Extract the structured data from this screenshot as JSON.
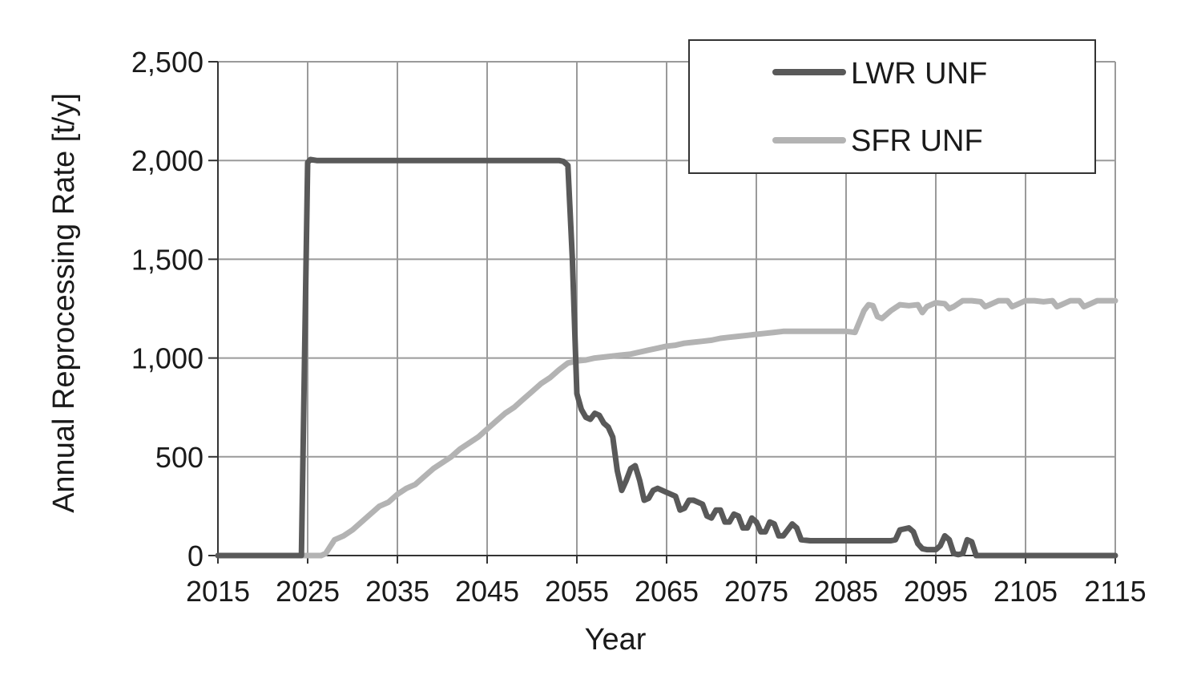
{
  "chart_data": {
    "type": "line",
    "title": "",
    "xlabel": "Year",
    "ylabel": "Annual Reprocessing Rate [t/y]",
    "xlim": [
      2015,
      2115
    ],
    "ylim": [
      0,
      2500
    ],
    "x_ticks": [
      "2015",
      "2025",
      "2035",
      "2045",
      "2055",
      "2065",
      "2075",
      "2085",
      "2095",
      "2105",
      "2115"
    ],
    "y_ticks": [
      "0",
      "500",
      "1,000",
      "1,500",
      "2,000",
      "2,500"
    ],
    "grid": true,
    "legend_position": "top-right",
    "series": [
      {
        "name": "LWR UNF",
        "color": "#595959",
        "points": [
          [
            2015,
            0
          ],
          [
            2024,
            0
          ],
          [
            2024.3,
            0
          ],
          [
            2025,
            1990
          ],
          [
            2025.3,
            2005
          ],
          [
            2026,
            2000
          ],
          [
            2030,
            2000
          ],
          [
            2040,
            2000
          ],
          [
            2050,
            2000
          ],
          [
            2053,
            2000
          ],
          [
            2053.5,
            1995
          ],
          [
            2054,
            1975
          ],
          [
            2054.5,
            1500
          ],
          [
            2055,
            820
          ],
          [
            2055.5,
            740
          ],
          [
            2056,
            700
          ],
          [
            2056.5,
            690
          ],
          [
            2057,
            720
          ],
          [
            2057.5,
            710
          ],
          [
            2058,
            670
          ],
          [
            2058.5,
            650
          ],
          [
            2059,
            600
          ],
          [
            2059.5,
            430
          ],
          [
            2060,
            330
          ],
          [
            2060.5,
            380
          ],
          [
            2061,
            440
          ],
          [
            2061.5,
            455
          ],
          [
            2062,
            380
          ],
          [
            2062.5,
            280
          ],
          [
            2063,
            290
          ],
          [
            2063.5,
            330
          ],
          [
            2064,
            340
          ],
          [
            2065,
            320
          ],
          [
            2066,
            300
          ],
          [
            2066.5,
            230
          ],
          [
            2067,
            240
          ],
          [
            2067.5,
            280
          ],
          [
            2068,
            280
          ],
          [
            2069,
            260
          ],
          [
            2069.5,
            200
          ],
          [
            2070,
            190
          ],
          [
            2070.5,
            230
          ],
          [
            2071,
            230
          ],
          [
            2071.5,
            170
          ],
          [
            2072,
            170
          ],
          [
            2072.5,
            210
          ],
          [
            2073,
            200
          ],
          [
            2073.5,
            140
          ],
          [
            2074,
            140
          ],
          [
            2074.5,
            190
          ],
          [
            2075,
            170
          ],
          [
            2075.5,
            120
          ],
          [
            2076,
            120
          ],
          [
            2076.5,
            170
          ],
          [
            2077,
            160
          ],
          [
            2077.5,
            100
          ],
          [
            2078,
            100
          ],
          [
            2078.5,
            130
          ],
          [
            2079,
            160
          ],
          [
            2079.5,
            140
          ],
          [
            2080,
            80
          ],
          [
            2081,
            75
          ],
          [
            2082,
            75
          ],
          [
            2085,
            75
          ],
          [
            2088,
            75
          ],
          [
            2090,
            75
          ],
          [
            2090.5,
            80
          ],
          [
            2091,
            130
          ],
          [
            2092,
            140
          ],
          [
            2092.5,
            120
          ],
          [
            2093,
            60
          ],
          [
            2093.5,
            35
          ],
          [
            2094,
            30
          ],
          [
            2095,
            30
          ],
          [
            2095.5,
            50
          ],
          [
            2096,
            100
          ],
          [
            2096.5,
            80
          ],
          [
            2097,
            10
          ],
          [
            2097.5,
            5
          ],
          [
            2098,
            10
          ],
          [
            2098.5,
            80
          ],
          [
            2099,
            70
          ],
          [
            2099.5,
            0
          ],
          [
            2100,
            0
          ],
          [
            2115,
            0
          ]
        ]
      },
      {
        "name": "SFR UNF",
        "color": "#b3b3b3",
        "points": [
          [
            2015,
            0
          ],
          [
            2025,
            0
          ],
          [
            2026.5,
            0
          ],
          [
            2027,
            10
          ],
          [
            2028,
            80
          ],
          [
            2029,
            100
          ],
          [
            2030,
            130
          ],
          [
            2031,
            170
          ],
          [
            2032,
            210
          ],
          [
            2033,
            250
          ],
          [
            2034,
            270
          ],
          [
            2035,
            310
          ],
          [
            2036,
            340
          ],
          [
            2037,
            360
          ],
          [
            2038,
            400
          ],
          [
            2039,
            440
          ],
          [
            2040,
            470
          ],
          [
            2041,
            500
          ],
          [
            2042,
            540
          ],
          [
            2043,
            570
          ],
          [
            2044,
            600
          ],
          [
            2045,
            640
          ],
          [
            2046,
            680
          ],
          [
            2047,
            720
          ],
          [
            2048,
            750
          ],
          [
            2049,
            790
          ],
          [
            2050,
            830
          ],
          [
            2051,
            870
          ],
          [
            2052,
            900
          ],
          [
            2053,
            940
          ],
          [
            2054,
            975
          ],
          [
            2055,
            985
          ],
          [
            2056,
            990
          ],
          [
            2057,
            1000
          ],
          [
            2058,
            1005
          ],
          [
            2059,
            1010
          ],
          [
            2060,
            1015
          ],
          [
            2061,
            1020
          ],
          [
            2062,
            1030
          ],
          [
            2063,
            1040
          ],
          [
            2064,
            1050
          ],
          [
            2065,
            1060
          ],
          [
            2066,
            1065
          ],
          [
            2067,
            1075
          ],
          [
            2068,
            1080
          ],
          [
            2069,
            1085
          ],
          [
            2070,
            1090
          ],
          [
            2071,
            1100
          ],
          [
            2072,
            1105
          ],
          [
            2073,
            1110
          ],
          [
            2074,
            1115
          ],
          [
            2075,
            1120
          ],
          [
            2076,
            1125
          ],
          [
            2077,
            1130
          ],
          [
            2078,
            1135
          ],
          [
            2080,
            1135
          ],
          [
            2085,
            1135
          ],
          [
            2086,
            1130
          ],
          [
            2087,
            1240
          ],
          [
            2087.5,
            1270
          ],
          [
            2088,
            1265
          ],
          [
            2088.5,
            1210
          ],
          [
            2089,
            1200
          ],
          [
            2090,
            1240
          ],
          [
            2091,
            1270
          ],
          [
            2092,
            1265
          ],
          [
            2093,
            1270
          ],
          [
            2093.5,
            1230
          ],
          [
            2094,
            1260
          ],
          [
            2095,
            1280
          ],
          [
            2096,
            1275
          ],
          [
            2096.5,
            1250
          ],
          [
            2097,
            1260
          ],
          [
            2098,
            1290
          ],
          [
            2099,
            1290
          ],
          [
            2100,
            1285
          ],
          [
            2100.5,
            1260
          ],
          [
            2101,
            1270
          ],
          [
            2102,
            1290
          ],
          [
            2103,
            1290
          ],
          [
            2103.5,
            1260
          ],
          [
            2104,
            1270
          ],
          [
            2105,
            1290
          ],
          [
            2106,
            1290
          ],
          [
            2107,
            1285
          ],
          [
            2108,
            1290
          ],
          [
            2108.5,
            1260
          ],
          [
            2109,
            1270
          ],
          [
            2110,
            1290
          ],
          [
            2111,
            1290
          ],
          [
            2111.5,
            1260
          ],
          [
            2112,
            1270
          ],
          [
            2113,
            1290
          ],
          [
            2114,
            1290
          ],
          [
            2115,
            1290
          ]
        ]
      }
    ]
  }
}
